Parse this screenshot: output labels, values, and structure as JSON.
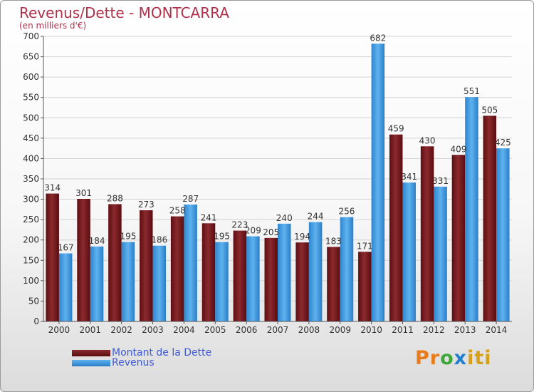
{
  "header": {
    "title": "Revenus/Dette - MONTCARRA",
    "subtitle": "(en milliers d'€)"
  },
  "chart_data": {
    "type": "bar",
    "title": "Revenus/Dette - MONTCARRA",
    "subtitle": "(en milliers d'€)",
    "categories": [
      "2000",
      "2001",
      "2002",
      "2003",
      "2004",
      "2005",
      "2006",
      "2007",
      "2008",
      "2009",
      "2010",
      "2011",
      "2012",
      "2013",
      "2014"
    ],
    "series": [
      {
        "name": "Montant de la Dette",
        "color": "#7a1a1e",
        "values": [
          314,
          301,
          288,
          273,
          258,
          241,
          223,
          205,
          194,
          183,
          171,
          459,
          430,
          409,
          505
        ]
      },
      {
        "name": "Revenus",
        "color": "#3f9be0",
        "values": [
          167,
          184,
          195,
          186,
          287,
          195,
          209,
          240,
          244,
          256,
          682,
          341,
          331,
          551,
          425
        ]
      }
    ],
    "ylim": [
      0,
      700
    ],
    "yticks": [
      0,
      50,
      100,
      150,
      200,
      250,
      300,
      350,
      400,
      450,
      500,
      550,
      600,
      650,
      700
    ],
    "grid": true,
    "legend_position": "bottom-left"
  },
  "logo": {
    "text": "Proxiti"
  }
}
